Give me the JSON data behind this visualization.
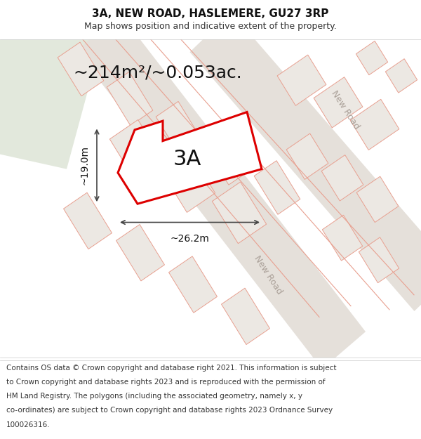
{
  "title": "3A, NEW ROAD, HASLEMERE, GU27 3RP",
  "subtitle": "Map shows position and indicative extent of the property.",
  "footer_lines": [
    "Contains OS data © Crown copyright and database right 2021. This information is subject",
    "to Crown copyright and database rights 2023 and is reproduced with the permission of",
    "HM Land Registry. The polygons (including the associated geometry, namely x, y",
    "co-ordinates) are subject to Crown copyright and database rights 2023 Ordnance Survey",
    "100026316."
  ],
  "area_label": "~214m²/~0.053ac.",
  "width_label": "~26.2m",
  "height_label": "~19.0m",
  "label_3A": "3A",
  "map_bg": "#f2ede8",
  "plot_fill": "#ffffff",
  "plot_outline": "#dd0000",
  "road_line_color": "#e8a090",
  "road_label_color": "#aaa098",
  "green_area": "#e2e8dc",
  "dim_line_color": "#444444",
  "title_fontsize": 11,
  "subtitle_fontsize": 9,
  "footer_fontsize": 7.5,
  "label_fontsize": 22,
  "area_fontsize": 18,
  "dim_fontsize": 10
}
